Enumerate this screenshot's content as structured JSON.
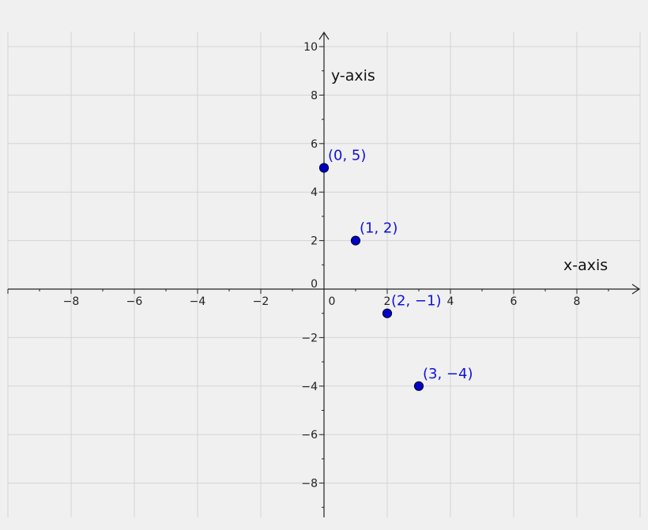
{
  "chart_data": {
    "type": "scatter",
    "xlabel": "x-axis",
    "ylabel": "y-axis",
    "xlim": [
      -10,
      10
    ],
    "ylim": [
      -9.5,
      10.2
    ],
    "grid": true,
    "x_ticks": [
      {
        "value": -8,
        "label": "−8"
      },
      {
        "value": -6,
        "label": "−6"
      },
      {
        "value": -4,
        "label": "−4"
      },
      {
        "value": -2,
        "label": "−2"
      },
      {
        "value": 0,
        "label": "0"
      },
      {
        "value": 2,
        "label": "2"
      },
      {
        "value": 4,
        "label": "4"
      },
      {
        "value": 6,
        "label": "6"
      },
      {
        "value": 8,
        "label": "8"
      }
    ],
    "y_ticks": [
      {
        "value": 10,
        "label": "10"
      },
      {
        "value": 8,
        "label": "8"
      },
      {
        "value": 6,
        "label": "6"
      },
      {
        "value": 4,
        "label": "4"
      },
      {
        "value": 2,
        "label": "2"
      },
      {
        "value": 0,
        "label": "0"
      },
      {
        "value": -2,
        "label": "−2"
      },
      {
        "value": -4,
        "label": "−4"
      },
      {
        "value": -6,
        "label": "−6"
      },
      {
        "value": -8,
        "label": "−8"
      }
    ],
    "points": [
      {
        "x": 0,
        "y": 5,
        "label": "(0, 5)"
      },
      {
        "x": 1,
        "y": 2,
        "label": "(1, 2)"
      },
      {
        "x": 2,
        "y": -1,
        "label": "(2, −1)"
      },
      {
        "x": 3,
        "y": -4,
        "label": "(3, −4)"
      }
    ],
    "point_color": "#0000cc",
    "label_color": "#1010dd",
    "grid_color": "#d4d4d4",
    "background": "#f0f0f0"
  }
}
